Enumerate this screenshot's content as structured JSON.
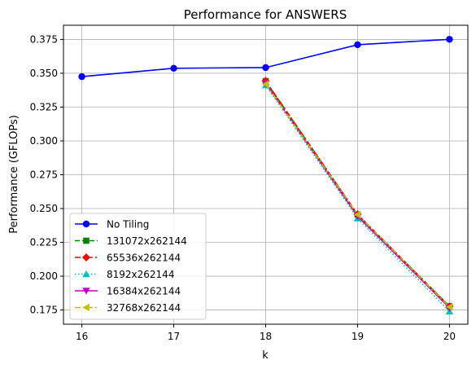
{
  "chart_data": {
    "type": "line",
    "title": "Performance for ANSWERS",
    "xlabel": "k",
    "ylabel": "Performance (GFLOPs)",
    "x_ticks": [
      16,
      17,
      18,
      19,
      20
    ],
    "y_ticks": [
      0.175,
      0.2,
      0.225,
      0.25,
      0.275,
      0.3,
      0.325,
      0.35,
      0.375
    ],
    "y_tick_labels": [
      "0.175",
      "0.200",
      "0.225",
      "0.250",
      "0.275",
      "0.300",
      "0.325",
      "0.350",
      "0.375"
    ],
    "xlim": [
      15.8,
      20.2
    ],
    "ylim": [
      0.1645,
      0.3855
    ],
    "grid": true,
    "legend_position": "lower-left",
    "series": [
      {
        "name": "No Tiling",
        "color": "#0000ff",
        "dash": "solid",
        "marker": "circle",
        "x": [
          16,
          17,
          18,
          19,
          20
        ],
        "y": [
          0.3475,
          0.3537,
          0.3542,
          0.3711,
          0.3751
        ]
      },
      {
        "name": "131072x262144",
        "color": "#008000",
        "dash": "dashed",
        "marker": "square",
        "x": [
          18,
          19,
          20
        ],
        "y": [
          0.3442,
          0.2455,
          0.1778
        ]
      },
      {
        "name": "65536x262144",
        "color": "#ff0000",
        "dash": "dashdot",
        "marker": "diamond",
        "x": [
          18,
          19,
          20
        ],
        "y": [
          0.3443,
          0.2457,
          0.1776
        ]
      },
      {
        "name": "8192x262144",
        "color": "#00bfbf",
        "dash": "dotted",
        "marker": "triangle-up",
        "x": [
          18,
          19,
          20
        ],
        "y": [
          0.3412,
          0.2428,
          0.174
        ]
      },
      {
        "name": "16384x262144",
        "color": "#bf00bf",
        "dash": "solid",
        "marker": "triangle-down",
        "x": [
          18,
          19,
          20
        ],
        "y": [
          0.3425,
          0.2443,
          0.1765
        ]
      },
      {
        "name": "32768x262144",
        "color": "#bfbf00",
        "dash": "dashdot",
        "marker": "triangle-left",
        "x": [
          18,
          19,
          20
        ],
        "y": [
          0.342,
          0.2455,
          0.1772
        ]
      }
    ]
  }
}
